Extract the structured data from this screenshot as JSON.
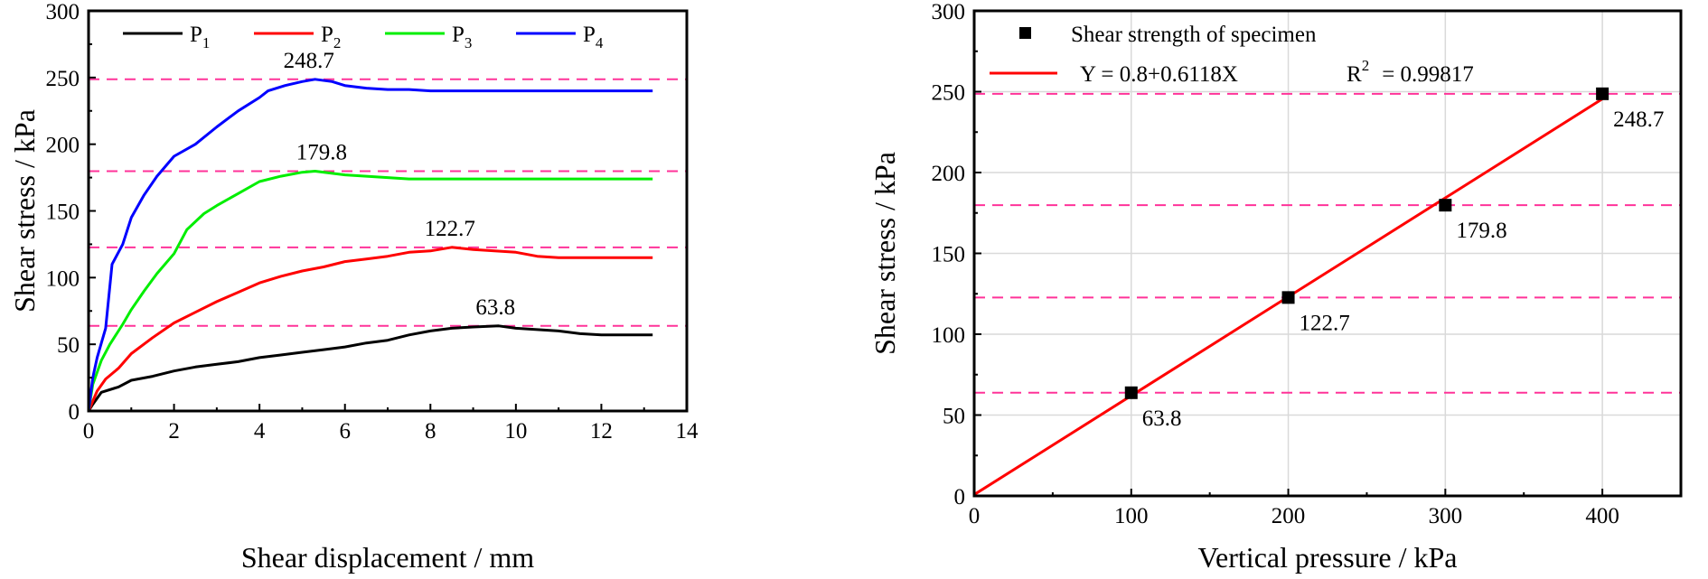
{
  "chart_data": [
    {
      "type": "line",
      "xlabel": "Shear displacement / mm",
      "ylabel": "Shear stress / kPa",
      "xlim": [
        0,
        14
      ],
      "ylim": [
        0,
        300
      ],
      "xticks": [
        0,
        2,
        4,
        6,
        8,
        10,
        12,
        14
      ],
      "yticks": [
        0,
        50,
        100,
        150,
        200,
        250,
        300
      ],
      "grid": false,
      "legend_position": "top",
      "series": [
        {
          "name": "P",
          "subscript": "1",
          "color": "#000000",
          "points": [
            [
              0,
              0
            ],
            [
              0.1,
              5
            ],
            [
              0.3,
              14
            ],
            [
              0.7,
              18
            ],
            [
              1.0,
              23
            ],
            [
              1.5,
              26
            ],
            [
              2.0,
              30
            ],
            [
              2.5,
              33
            ],
            [
              3.0,
              35
            ],
            [
              3.5,
              37
            ],
            [
              4.0,
              40
            ],
            [
              4.5,
              42
            ],
            [
              5.0,
              44
            ],
            [
              5.5,
              46
            ],
            [
              6.0,
              48
            ],
            [
              6.5,
              51
            ],
            [
              7.0,
              53
            ],
            [
              7.5,
              57
            ],
            [
              8.0,
              60
            ],
            [
              8.5,
              62
            ],
            [
              9.0,
              63
            ],
            [
              9.6,
              63.8
            ],
            [
              10.0,
              62
            ],
            [
              10.5,
              61
            ],
            [
              11.0,
              60
            ],
            [
              11.5,
              58
            ],
            [
              12.0,
              57
            ],
            [
              13.2,
              57
            ]
          ]
        },
        {
          "name": "P",
          "subscript": "2",
          "color": "#ff0000",
          "points": [
            [
              0,
              0
            ],
            [
              0.2,
              15
            ],
            [
              0.4,
              24
            ],
            [
              0.7,
              32
            ],
            [
              1.0,
              43
            ],
            [
              1.5,
              55
            ],
            [
              2.0,
              66
            ],
            [
              2.5,
              74
            ],
            [
              3.0,
              82
            ],
            [
              3.5,
              89
            ],
            [
              4.0,
              96
            ],
            [
              4.5,
              101
            ],
            [
              5.0,
              105
            ],
            [
              5.5,
              108
            ],
            [
              6.0,
              112
            ],
            [
              6.5,
              114
            ],
            [
              7.0,
              116
            ],
            [
              7.5,
              119
            ],
            [
              8.0,
              120
            ],
            [
              8.5,
              122.7
            ],
            [
              9.0,
              121
            ],
            [
              9.5,
              120
            ],
            [
              10.0,
              119
            ],
            [
              10.5,
              116
            ],
            [
              11.0,
              115
            ],
            [
              12.0,
              115
            ],
            [
              13.2,
              115
            ]
          ]
        },
        {
          "name": "P",
          "subscript": "3",
          "color": "#00ee00",
          "points": [
            [
              0,
              0
            ],
            [
              0.1,
              20
            ],
            [
              0.3,
              38
            ],
            [
              0.5,
              50
            ],
            [
              0.8,
              65
            ],
            [
              1.0,
              76
            ],
            [
              1.3,
              90
            ],
            [
              1.6,
              103
            ],
            [
              2.0,
              118
            ],
            [
              2.3,
              136
            ],
            [
              2.7,
              148
            ],
            [
              3.0,
              154
            ],
            [
              3.5,
              163
            ],
            [
              4.0,
              172
            ],
            [
              4.5,
              176
            ],
            [
              5.0,
              179
            ],
            [
              5.3,
              179.8
            ],
            [
              6.0,
              177
            ],
            [
              6.5,
              176
            ],
            [
              7.0,
              175
            ],
            [
              7.5,
              174
            ],
            [
              8.5,
              174
            ],
            [
              10.0,
              174
            ],
            [
              13.2,
              174
            ]
          ]
        },
        {
          "name": "P",
          "subscript": "4",
          "color": "#0000ff",
          "points": [
            [
              0,
              0
            ],
            [
              0.1,
              25
            ],
            [
              0.2,
              40
            ],
            [
              0.4,
              62
            ],
            [
              0.55,
              110
            ],
            [
              0.8,
              125
            ],
            [
              1.0,
              145
            ],
            [
              1.3,
              162
            ],
            [
              1.6,
              176
            ],
            [
              2.0,
              191
            ],
            [
              2.5,
              200
            ],
            [
              3.0,
              213
            ],
            [
              3.5,
              225
            ],
            [
              4.0,
              235
            ],
            [
              4.2,
              240
            ],
            [
              4.6,
              244
            ],
            [
              5.0,
              247
            ],
            [
              5.3,
              248.7
            ],
            [
              5.7,
              247
            ],
            [
              6.0,
              244
            ],
            [
              6.5,
              242
            ],
            [
              7.0,
              241
            ],
            [
              7.5,
              241
            ],
            [
              8.0,
              240
            ],
            [
              9.0,
              240
            ],
            [
              10.0,
              240
            ],
            [
              13.2,
              240
            ]
          ]
        }
      ],
      "reference_lines": [
        {
          "y": 63.8,
          "label": "63.8"
        },
        {
          "y": 122.7,
          "label": "122.7"
        },
        {
          "y": 179.8,
          "label": "179.8"
        },
        {
          "y": 248.7,
          "label": "248.7"
        }
      ],
      "reference_color": "#ff3399"
    },
    {
      "type": "scatter",
      "xlabel": "Vertical pressure / kPa",
      "ylabel": "Shear stress / kPa",
      "xlim": [
        0,
        450
      ],
      "ylim": [
        0,
        300
      ],
      "xticks": [
        0,
        100,
        200,
        300,
        400
      ],
      "yticks": [
        0,
        50,
        100,
        150,
        200,
        250,
        300
      ],
      "grid": true,
      "legend_position": "top-left",
      "points": [
        {
          "x": 100,
          "y": 63.8,
          "label": "63.8"
        },
        {
          "x": 200,
          "y": 122.7,
          "label": "122.7"
        },
        {
          "x": 300,
          "y": 179.8,
          "label": "179.8"
        },
        {
          "x": 400,
          "y": 248.7,
          "label": "248.7"
        }
      ],
      "scatter_name": "Shear strength of specimen",
      "scatter_color": "#000000",
      "fit": {
        "intercept": 0.8,
        "slope": 0.6118,
        "x_range": [
          0,
          400
        ],
        "color": "#ff0000",
        "equation": "Y = 0.8+0.6118X",
        "r2_label": "R",
        "r2_power": "2",
        "r2_value": "= 0.99817"
      },
      "reference_lines": [
        {
          "y": 63.8
        },
        {
          "y": 122.7
        },
        {
          "y": 179.8
        },
        {
          "y": 248.7
        }
      ],
      "reference_color": "#ff3399"
    }
  ]
}
